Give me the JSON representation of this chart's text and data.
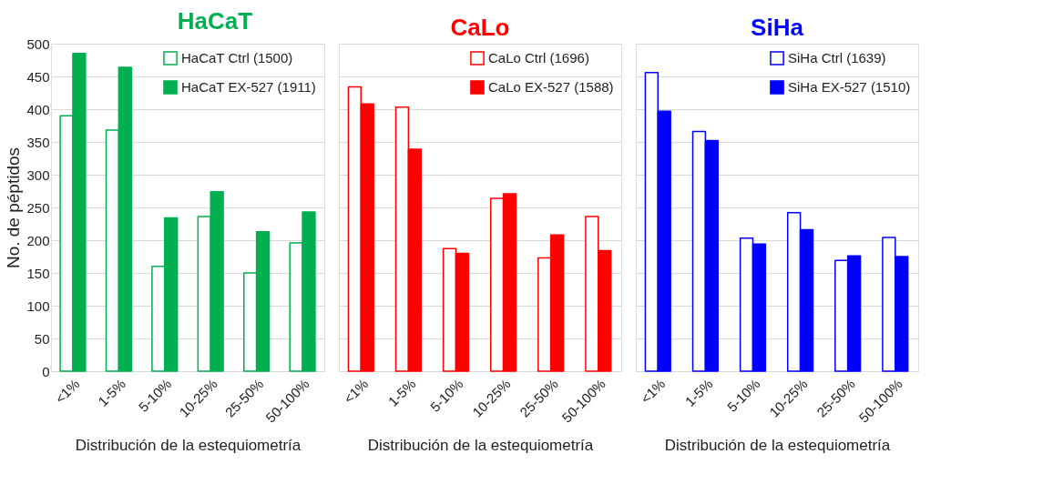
{
  "chart_data": [
    {
      "type": "bar",
      "title": "HaCaT",
      "xlabel": "Distribución de la estequiometría",
      "ylabel": "No. de péptidos",
      "categories": [
        "<1%",
        "1-5%",
        "5-10%",
        "10-25%",
        "25-50%",
        "50-100%"
      ],
      "series": [
        {
          "name": "HaCaT Ctrl (1500)",
          "color": "#00b050",
          "values": [
            390,
            368,
            160,
            236,
            150,
            196
          ]
        },
        {
          "name": "HaCaT EX-527 (1911)",
          "color": "#00b050",
          "values": [
            485,
            464,
            234,
            274,
            213,
            243
          ]
        }
      ],
      "ylim": [
        0,
        500
      ],
      "yticks": [
        0,
        50,
        100,
        150,
        200,
        250,
        300,
        350,
        400,
        450,
        500
      ],
      "grid": "y",
      "legend": "top right"
    },
    {
      "type": "bar",
      "title": "CaLo",
      "xlabel": "Distribución de la estequiometría",
      "categories": [
        "<1%",
        "1-5%",
        "5-10%",
        "10-25%",
        "25-50%",
        "50-100%"
      ],
      "series": [
        {
          "name": "CaLo Ctrl (1696)",
          "color": "#ff0000",
          "values": [
            434,
            403,
            187,
            264,
            173,
            236
          ]
        },
        {
          "name": "CaLo EX-527 (1588)",
          "color": "#ff0000",
          "values": [
            408,
            339,
            180,
            271,
            208,
            184
          ]
        }
      ],
      "ylim": [
        0,
        500
      ],
      "yticks": [
        0,
        50,
        100,
        150,
        200,
        250,
        300,
        350,
        400,
        450,
        500
      ],
      "grid": "y",
      "legend": "top right",
      "tick_labels": "x"
    },
    {
      "type": "bar",
      "title": "SiHa",
      "xlabel": "Distribución de la estequiometría",
      "categories": [
        "<1%",
        "1-5%",
        "5-10%",
        "10-25%",
        "25-50%",
        "50-100%"
      ],
      "series": [
        {
          "name": "SiHa Ctrl (1639)",
          "color": "#0000ff",
          "values": [
            456,
            366,
            203,
            242,
            169,
            204
          ]
        },
        {
          "name": "SiHa EX-527 (1510)",
          "color": "#0000ff",
          "values": [
            397,
            352,
            194,
            216,
            176,
            175
          ]
        }
      ],
      "ylim": [
        0,
        500
      ],
      "yticks": [
        0,
        50,
        100,
        150,
        200,
        250,
        300,
        350,
        400,
        450,
        500
      ],
      "grid": "y",
      "legend": "top right",
      "tick_labels": "x"
    }
  ]
}
